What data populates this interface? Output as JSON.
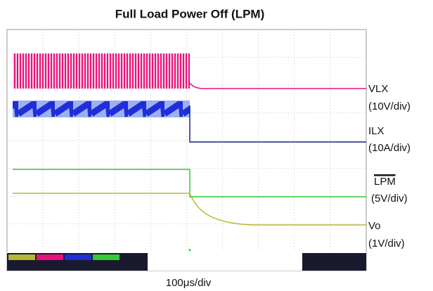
{
  "title": "Full Load Power Off (LPM)",
  "traces": [
    {
      "name": "VLX",
      "scale": "(10V/div)"
    },
    {
      "name": "ILX",
      "scale": "(10A/div)"
    },
    {
      "name": "LPM",
      "scale": "(5V/div)"
    },
    {
      "name": "Vo",
      "scale": "(1V/div)"
    }
  ],
  "timebase": "100μs/div"
}
